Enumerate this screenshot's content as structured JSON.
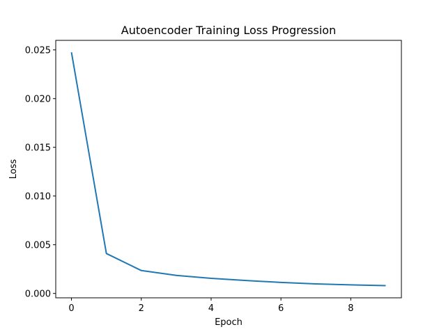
{
  "chart_data": {
    "type": "line",
    "title": "Autoencoder Training Loss Progression",
    "xlabel": "Epoch",
    "ylabel": "Loss",
    "xlim": [
      -0.45,
      9.45
    ],
    "ylim": [
      -0.00045,
      0.02598
    ],
    "x_ticks": [
      0,
      2,
      4,
      6,
      8
    ],
    "x_tick_labels": [
      "0",
      "2",
      "4",
      "6",
      "8"
    ],
    "y_ticks": [
      0.0,
      0.005,
      0.01,
      0.015,
      0.02,
      0.025
    ],
    "y_tick_labels": [
      "0.000",
      "0.005",
      "0.010",
      "0.015",
      "0.020",
      "0.025"
    ],
    "grid": false,
    "series": [
      {
        "color": "#1f77b4",
        "x": [
          0,
          1,
          2,
          3,
          4,
          5,
          6,
          7,
          8,
          9
        ],
        "y": [
          0.02475,
          0.0041,
          0.00235,
          0.00185,
          0.00155,
          0.00133,
          0.00113,
          0.00098,
          0.00088,
          0.0008
        ]
      }
    ]
  }
}
